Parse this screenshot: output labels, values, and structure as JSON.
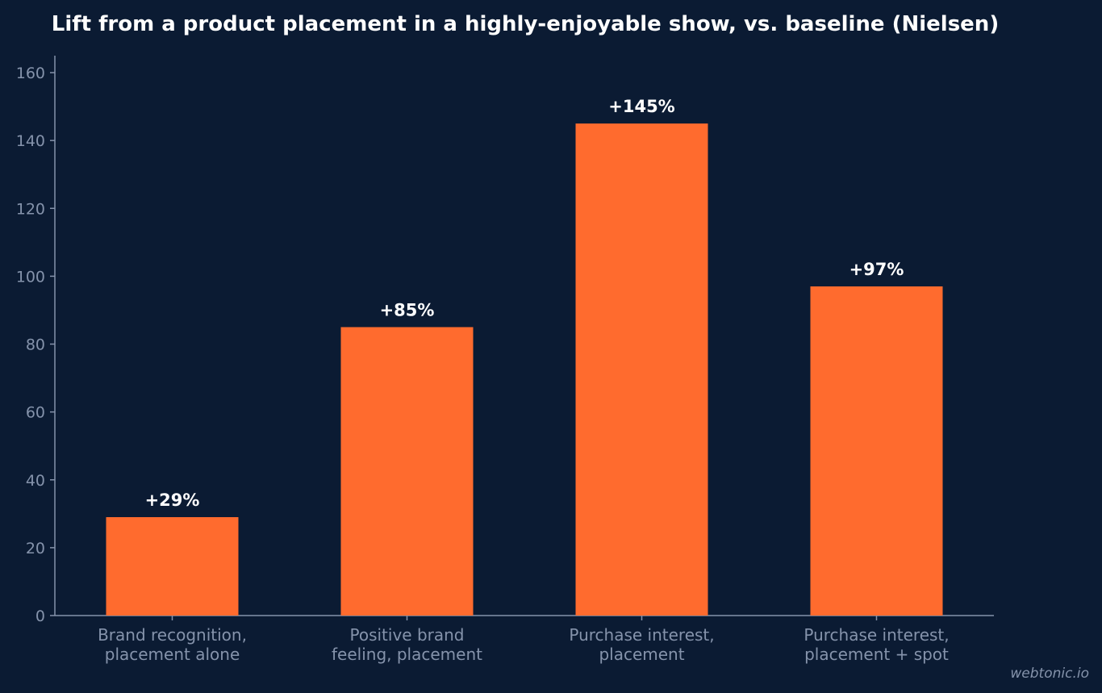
{
  "chart_data": {
    "type": "bar",
    "title": "Lift from a product placement in a highly-enjoyable show, vs. baseline (Nielsen)",
    "xlabel": "",
    "ylabel": "",
    "categories": [
      [
        "Brand recognition,",
        "placement alone"
      ],
      [
        "Positive brand",
        "feeling, placement"
      ],
      [
        "Purchase interest,",
        "placement"
      ],
      [
        "Purchase interest,",
        "placement + spot"
      ]
    ],
    "values": [
      29,
      85,
      145,
      97
    ],
    "data_labels": [
      "+29%",
      "+85%",
      "+145%",
      "+97%"
    ],
    "ylim": [
      0,
      165
    ],
    "yticks": [
      0,
      20,
      40,
      60,
      80,
      100,
      120,
      140,
      160
    ],
    "grid": false,
    "bar_color": "#ff6b2e",
    "background_color": "#0b1b33",
    "axis_color": "#8593ab"
  },
  "watermark": "webtonic.io"
}
